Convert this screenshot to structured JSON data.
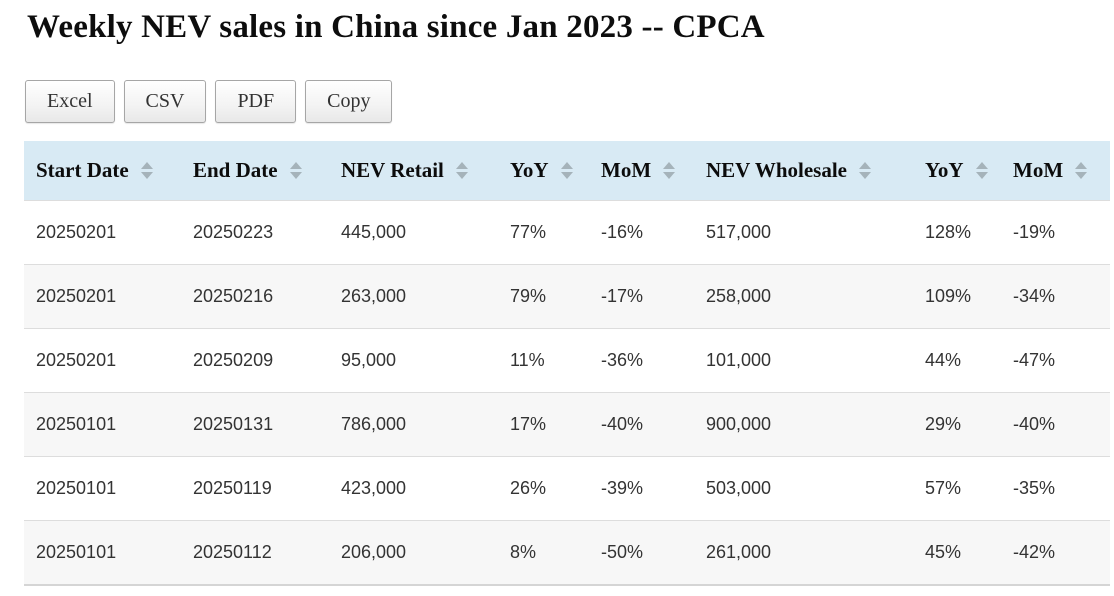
{
  "page": {
    "title": "Weekly NEV sales in China since Jan 2023 -- CPCA"
  },
  "toolbar": {
    "buttons": [
      {
        "id": "excel",
        "label": "Excel"
      },
      {
        "id": "csv",
        "label": "CSV"
      },
      {
        "id": "pdf",
        "label": "PDF"
      },
      {
        "id": "copy",
        "label": "Copy"
      }
    ]
  },
  "table": {
    "columns": [
      {
        "label": "Start Date",
        "sortable": true
      },
      {
        "label": "End Date",
        "sortable": true
      },
      {
        "label": "NEV Retail",
        "sortable": true
      },
      {
        "label": "YoY",
        "sortable": true
      },
      {
        "label": "MoM",
        "sortable": true
      },
      {
        "label": "NEV Wholesale",
        "sortable": true
      },
      {
        "label": "YoY",
        "sortable": true
      },
      {
        "label": "MoM",
        "sortable": true
      }
    ],
    "rows": [
      [
        "20250201",
        "20250223",
        "445,000",
        "77%",
        "-16%",
        "517,000",
        "128%",
        "-19%"
      ],
      [
        "20250201",
        "20250216",
        "263,000",
        "79%",
        "-17%",
        "258,000",
        "109%",
        "-34%"
      ],
      [
        "20250201",
        "20250209",
        "95,000",
        "11%",
        "-36%",
        "101,000",
        "44%",
        "-47%"
      ],
      [
        "20250101",
        "20250131",
        "786,000",
        "17%",
        "-40%",
        "900,000",
        "29%",
        "-40%"
      ],
      [
        "20250101",
        "20250119",
        "423,000",
        "26%",
        "-39%",
        "503,000",
        "57%",
        "-35%"
      ],
      [
        "20250101",
        "20250112",
        "206,000",
        "8%",
        "-50%",
        "261,000",
        "45%",
        "-42%"
      ]
    ]
  },
  "chart_data": {
    "type": "table",
    "title": "Weekly NEV sales in China since Jan 2023 -- CPCA",
    "columns": [
      "Start Date",
      "End Date",
      "NEV Retail",
      "YoY",
      "MoM",
      "NEV Wholesale",
      "YoY",
      "MoM"
    ],
    "rows": [
      [
        "20250201",
        "20250223",
        "445,000",
        "77%",
        "-16%",
        "517,000",
        "128%",
        "-19%"
      ],
      [
        "20250201",
        "20250216",
        "263,000",
        "79%",
        "-17%",
        "258,000",
        "109%",
        "-34%"
      ],
      [
        "20250201",
        "20250209",
        "95,000",
        "11%",
        "-36%",
        "101,000",
        "44%",
        "-47%"
      ],
      [
        "20250101",
        "20250131",
        "786,000",
        "17%",
        "-40%",
        "900,000",
        "29%",
        "-40%"
      ],
      [
        "20250101",
        "20250119",
        "423,000",
        "26%",
        "-39%",
        "503,000",
        "57%",
        "-35%"
      ],
      [
        "20250101",
        "20250112",
        "206,000",
        "8%",
        "-50%",
        "261,000",
        "45%",
        "-42%"
      ]
    ]
  },
  "colors": {
    "header_bg": "#d8eaf4",
    "row_alt_bg": "#f7f7f7",
    "row_border": "#dddddd",
    "sort_arrow": "#a5b3ba",
    "table_bottom_border": "#d5d5d5"
  }
}
